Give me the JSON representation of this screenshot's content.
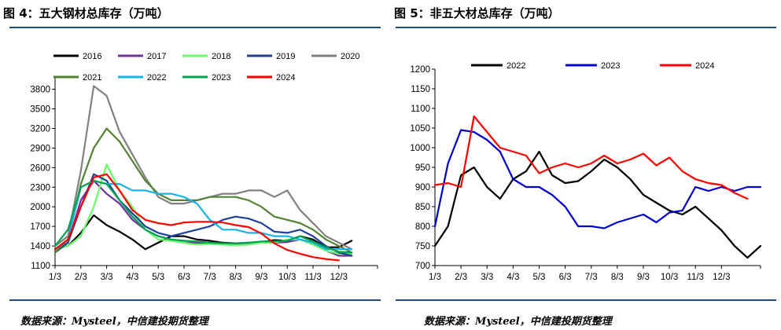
{
  "charts": [
    {
      "title": "图 4：五大钢材总库存（万吨）",
      "source": "数据来源：Mysteel，中信建投期货整理"
    },
    {
      "title": "图 5：非五大材总库存（万吨）",
      "source": "数据来源：Mysteel，中信建投期货整理"
    }
  ],
  "chart_data": [
    {
      "type": "line",
      "title": "图 4：五大钢材总库存（万吨）",
      "xlabel": "",
      "ylabel": "",
      "categories": [
        "1/3",
        "2/3",
        "3/3",
        "4/3",
        "5/3",
        "6/3",
        "7/3",
        "8/3",
        "9/3",
        "10/3",
        "11/3",
        "12/3"
      ],
      "x": [
        0,
        0.5,
        1,
        1.5,
        2,
        2.5,
        3,
        3.5,
        4,
        4.5,
        5,
        5.5,
        6,
        6.5,
        7,
        7.5,
        8,
        8.5,
        9,
        9.5,
        10,
        10.5,
        11,
        11.5
      ],
      "xlim": [
        0,
        12.5
      ],
      "ylim": [
        1100,
        4000
      ],
      "yticks": [
        1100,
        1400,
        1700,
        2000,
        2300,
        2600,
        2900,
        3200,
        3500,
        3800
      ],
      "legend_position": "top",
      "series": [
        {
          "name": "2016",
          "color": "#000000",
          "values": [
            1350,
            1400,
            1600,
            1870,
            1720,
            1620,
            1500,
            1350,
            1450,
            1550,
            1550,
            1500,
            1480,
            1450,
            1440,
            1450,
            1460,
            1490,
            1480,
            1550,
            1500,
            1380,
            1380,
            1480
          ]
        },
        {
          "name": "2017",
          "color": "#7030a0",
          "values": [
            1300,
            1450,
            2100,
            2400,
            2200,
            2050,
            1800,
            1650,
            1550,
            1500,
            1450,
            1450,
            1450,
            1430,
            1420,
            1430,
            1450,
            1450,
            1460,
            1500,
            1450,
            1330,
            1250,
            1250
          ]
        },
        {
          "name": "2018",
          "color": "#66ff66",
          "values": [
            1350,
            1400,
            1550,
            2000,
            2650,
            2250,
            2000,
            1650,
            1500,
            1480,
            1450,
            1420,
            1430,
            1420,
            1410,
            1420,
            1450,
            1450,
            1500,
            1500,
            1420,
            1330,
            1280,
            1280
          ]
        },
        {
          "name": "2019",
          "color": "#1f3f99",
          "values": [
            1300,
            1450,
            2000,
            2500,
            2400,
            2100,
            1900,
            1700,
            1600,
            1550,
            1600,
            1650,
            1700,
            1800,
            1850,
            1820,
            1750,
            1620,
            1600,
            1650,
            1550,
            1400,
            1300,
            1250
          ]
        },
        {
          "name": "2020",
          "color": "#808080",
          "values": [
            1400,
            1550,
            2550,
            3850,
            3700,
            3150,
            2800,
            2450,
            2150,
            2050,
            2050,
            2100,
            2150,
            2200,
            2200,
            2250,
            2250,
            2150,
            2250,
            1950,
            1750,
            1550,
            1450,
            1350
          ]
        },
        {
          "name": "2021",
          "color": "#548235",
          "values": [
            1300,
            1500,
            2350,
            2900,
            3200,
            3000,
            2700,
            2400,
            2200,
            2100,
            2100,
            2100,
            2150,
            2150,
            2150,
            2100,
            2000,
            1850,
            1800,
            1750,
            1650,
            1500,
            1400,
            1300
          ]
        },
        {
          "name": "2022",
          "color": "#1ab2e8",
          "values": [
            1350,
            1500,
            2300,
            2400,
            2350,
            2350,
            2250,
            2250,
            2200,
            2200,
            2150,
            2050,
            1800,
            1650,
            1650,
            1600,
            1600,
            1550,
            1550,
            1500,
            1450,
            1350,
            1350,
            1350
          ]
        },
        {
          "name": "2023",
          "color": "#00a352",
          "values": [
            1400,
            1650,
            2300,
            2400,
            2350,
            2100,
            1850,
            1650,
            1550,
            1500,
            1480,
            1470,
            1450,
            1440,
            1440,
            1450,
            1470,
            1470,
            1480,
            1550,
            1470,
            1380,
            1310,
            1300
          ]
        },
        {
          "name": "2024",
          "color": "#ff0000",
          "values": [
            1350,
            1500,
            2000,
            2450,
            2500,
            2250,
            1950,
            1800,
            1750,
            1720,
            1760,
            1770,
            1770,
            1760,
            1720,
            1690,
            1590,
            1440,
            1340,
            1280,
            1230,
            1200,
            1180,
            null
          ]
        }
      ]
    },
    {
      "type": "line",
      "title": "图 5：非五大材总库存（万吨）",
      "xlabel": "",
      "ylabel": "",
      "categories": [
        "1/3",
        "2/3",
        "3/3",
        "4/3",
        "5/3",
        "6/3",
        "7/3",
        "8/3",
        "9/3",
        "10/3",
        "11/3",
        "12/3"
      ],
      "x": [
        0,
        0.5,
        1,
        1.5,
        2,
        2.5,
        3,
        3.5,
        4,
        4.5,
        5,
        5.5,
        6,
        6.5,
        7,
        7.5,
        8,
        8.5,
        9,
        9.5,
        10,
        10.5,
        11,
        11.5,
        12,
        12.5
      ],
      "xlim": [
        0,
        12.5
      ],
      "ylim": [
        700,
        1200
      ],
      "yticks": [
        700,
        750,
        800,
        850,
        900,
        950,
        1000,
        1050,
        1100,
        1150,
        1200
      ],
      "legend_position": "top",
      "series": [
        {
          "name": "2022",
          "color": "#000000",
          "values": [
            750,
            800,
            930,
            950,
            900,
            870,
            920,
            940,
            990,
            930,
            910,
            915,
            940,
            970,
            950,
            920,
            880,
            860,
            840,
            830,
            850,
            820,
            790,
            750,
            720,
            750
          ]
        },
        {
          "name": "2023",
          "color": "#0000cc",
          "values": [
            800,
            960,
            1045,
            1040,
            1020,
            990,
            920,
            900,
            900,
            880,
            850,
            800,
            800,
            795,
            810,
            820,
            830,
            810,
            835,
            840,
            900,
            890,
            900,
            890,
            900,
            900
          ]
        },
        {
          "name": "2024",
          "color": "#ff0000",
          "values": [
            905,
            910,
            900,
            1080,
            1040,
            1000,
            990,
            980,
            935,
            950,
            960,
            950,
            960,
            980,
            960,
            970,
            985,
            955,
            975,
            940,
            920,
            910,
            905,
            885,
            870,
            null
          ]
        }
      ]
    }
  ]
}
